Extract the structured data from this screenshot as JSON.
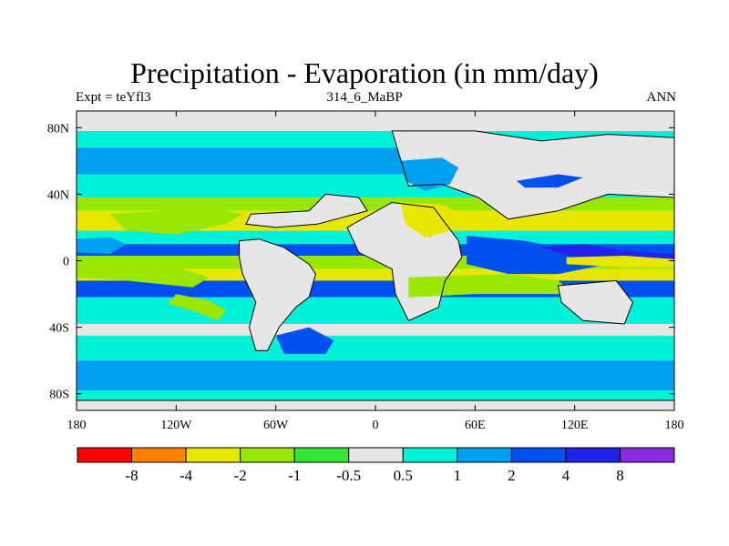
{
  "chart_data": {
    "type": "heatmap",
    "title": "Precipitation - Evaporation (in mm/day)",
    "subtitle_left": "Expt = teYfl3",
    "subtitle_center": "314_6_MaBP",
    "subtitle_right": "ANN",
    "xlim": [
      -180,
      180
    ],
    "ylim": [
      -90,
      90
    ],
    "x_ticks": [
      {
        "value": -180,
        "label": "180"
      },
      {
        "value": -120,
        "label": "120W"
      },
      {
        "value": -60,
        "label": "60W"
      },
      {
        "value": 0,
        "label": "0"
      },
      {
        "value": 60,
        "label": "60E"
      },
      {
        "value": 120,
        "label": "120E"
      },
      {
        "value": 180,
        "label": "180"
      }
    ],
    "y_ticks": [
      {
        "value": 80,
        "label": "80N"
      },
      {
        "value": 40,
        "label": "40N"
      },
      {
        "value": 0,
        "label": "0"
      },
      {
        "value": -40,
        "label": "40S"
      },
      {
        "value": -80,
        "label": "80S"
      }
    ],
    "colorbar": {
      "labels": [
        "-8",
        "-4",
        "-2",
        "-1",
        "-0.5",
        "0.5",
        "1",
        "2",
        "4",
        "8"
      ],
      "colors": [
        "#ff0000",
        "#ff8000",
        "#e6e600",
        "#99e600",
        "#33e633",
        "#e6e6e6",
        "#00f0d8",
        "#00a0f0",
        "#0050f0",
        "#2222e8",
        "#8a2be2"
      ]
    },
    "zonal_bands": [
      {
        "lat_from": 90,
        "lat_to": 78,
        "color": "#e6e6e6"
      },
      {
        "lat_from": 78,
        "lat_to": 68,
        "color": "#00f0d8"
      },
      {
        "lat_from": 68,
        "lat_to": 52,
        "color": "#00a0f0"
      },
      {
        "lat_from": 52,
        "lat_to": 38,
        "color": "#00f0d8"
      },
      {
        "lat_from": 38,
        "lat_to": 30,
        "color": "#99e600"
      },
      {
        "lat_from": 30,
        "lat_to": 18,
        "color": "#e6e600"
      },
      {
        "lat_from": 18,
        "lat_to": 10,
        "color": "#00f0d8"
      },
      {
        "lat_from": 10,
        "lat_to": 3,
        "color": "#0050f0"
      },
      {
        "lat_from": 3,
        "lat_to": -5,
        "color": "#99e600"
      },
      {
        "lat_from": -5,
        "lat_to": -12,
        "color": "#e6e600"
      },
      {
        "lat_from": -12,
        "lat_to": -22,
        "color": "#0050f0"
      },
      {
        "lat_from": -22,
        "lat_to": -38,
        "color": "#00f0d8"
      },
      {
        "lat_from": -38,
        "lat_to": -45,
        "color": "#e6e6e6"
      },
      {
        "lat_from": -45,
        "lat_to": -60,
        "color": "#00f0d8"
      },
      {
        "lat_from": -60,
        "lat_to": -78,
        "color": "#00a0f0"
      },
      {
        "lat_from": -78,
        "lat_to": -90,
        "color": "#00f0d8"
      }
    ],
    "regions": [
      {
        "name": "west-pacific-blue",
        "color": "#00a0f0",
        "pts": [
          [
            -180,
            13
          ],
          [
            -160,
            14
          ],
          [
            -150,
            10
          ],
          [
            -160,
            4
          ],
          [
            -180,
            5
          ]
        ]
      },
      {
        "name": "west-pacific-green",
        "color": "#99e600",
        "pts": [
          [
            -180,
            -2
          ],
          [
            -150,
            0
          ],
          [
            -120,
            -4
          ],
          [
            -100,
            -10
          ],
          [
            -110,
            -16
          ],
          [
            -150,
            -12
          ],
          [
            -180,
            -10
          ]
        ]
      },
      {
        "name": "north-pacific-orange",
        "color": "#ff8000",
        "pts": [
          [
            -140,
            20
          ],
          [
            -125,
            24
          ],
          [
            -108,
            28
          ],
          [
            -102,
            25
          ],
          [
            -118,
            20
          ],
          [
            -135,
            17
          ]
        ]
      },
      {
        "name": "north-pacific-green",
        "color": "#99e600",
        "pts": [
          [
            -160,
            28
          ],
          [
            -130,
            30
          ],
          [
            -100,
            32
          ],
          [
            -80,
            28
          ],
          [
            -90,
            22
          ],
          [
            -120,
            16
          ],
          [
            -150,
            18
          ]
        ]
      },
      {
        "name": "south-pacific-green",
        "color": "#99e600",
        "pts": [
          [
            -120,
            -20
          ],
          [
            -100,
            -24
          ],
          [
            -90,
            -30
          ],
          [
            -95,
            -36
          ],
          [
            -110,
            -30
          ],
          [
            -125,
            -26
          ]
        ]
      },
      {
        "name": "south-america-gray",
        "color": "#e6e6e6",
        "pts": [
          [
            -82,
            12
          ],
          [
            -70,
            13
          ],
          [
            -55,
            8
          ],
          [
            -40,
            -2
          ],
          [
            -36,
            -8
          ],
          [
            -40,
            -22
          ],
          [
            -48,
            -28
          ],
          [
            -58,
            -40
          ],
          [
            -65,
            -54
          ],
          [
            -72,
            -54
          ],
          [
            -76,
            -40
          ],
          [
            -72,
            -25
          ],
          [
            -80,
            -8
          ],
          [
            -82,
            2
          ]
        ]
      },
      {
        "name": "north-america-gray",
        "color": "#e6e6e6",
        "pts": [
          [
            -75,
            28
          ],
          [
            -40,
            30
          ],
          [
            -30,
            40
          ],
          [
            -10,
            38
          ],
          [
            -5,
            30
          ],
          [
            -35,
            22
          ],
          [
            -60,
            20
          ],
          [
            -78,
            22
          ]
        ]
      },
      {
        "name": "africa-gray",
        "color": "#e6e6e6",
        "pts": [
          [
            -17,
            20
          ],
          [
            10,
            35
          ],
          [
            35,
            32
          ],
          [
            50,
            12
          ],
          [
            52,
            2
          ],
          [
            42,
            -12
          ],
          [
            38,
            -28
          ],
          [
            20,
            -36
          ],
          [
            12,
            -20
          ],
          [
            10,
            -5
          ],
          [
            -10,
            5
          ]
        ]
      },
      {
        "name": "sahara-orange",
        "color": "#ff8000",
        "pts": [
          [
            25,
            28
          ],
          [
            35,
            29
          ],
          [
            38,
            20
          ],
          [
            33,
            14
          ],
          [
            25,
            18
          ]
        ]
      },
      {
        "name": "mideast-yellow",
        "color": "#e6e600",
        "pts": [
          [
            15,
            35
          ],
          [
            40,
            34
          ],
          [
            48,
            30
          ],
          [
            45,
            18
          ],
          [
            30,
            14
          ],
          [
            18,
            22
          ]
        ]
      },
      {
        "name": "eurasia-gray",
        "color": "#e6e6e6",
        "pts": [
          [
            10,
            78
          ],
          [
            60,
            78
          ],
          [
            100,
            72
          ],
          [
            140,
            76
          ],
          [
            180,
            74
          ],
          [
            180,
            38
          ],
          [
            140,
            40
          ],
          [
            110,
            30
          ],
          [
            80,
            25
          ],
          [
            62,
            38
          ],
          [
            40,
            46
          ],
          [
            20,
            45
          ]
        ]
      },
      {
        "name": "eurasia-blue",
        "color": "#00a0f0",
        "pts": [
          [
            15,
            60
          ],
          [
            40,
            62
          ],
          [
            50,
            56
          ],
          [
            45,
            46
          ],
          [
            30,
            42
          ],
          [
            18,
            48
          ]
        ]
      },
      {
        "name": "siberia-blue",
        "color": "#0050f0",
        "pts": [
          [
            85,
            48
          ],
          [
            110,
            52
          ],
          [
            125,
            50
          ],
          [
            110,
            44
          ],
          [
            90,
            44
          ]
        ]
      },
      {
        "name": "indian-blue",
        "color": "#0050f0",
        "pts": [
          [
            55,
            15
          ],
          [
            90,
            12
          ],
          [
            110,
            8
          ],
          [
            125,
            5
          ],
          [
            180,
            10
          ],
          [
            180,
            -3
          ],
          [
            140,
            -2
          ],
          [
            110,
            -8
          ],
          [
            80,
            -8
          ],
          [
            55,
            -2
          ]
        ]
      },
      {
        "name": "indian-purple",
        "color": "#2222e8",
        "pts": [
          [
            100,
            8
          ],
          [
            125,
            10
          ],
          [
            150,
            6
          ],
          [
            180,
            4
          ],
          [
            180,
            -1
          ],
          [
            150,
            -2
          ],
          [
            120,
            2
          ]
        ]
      },
      {
        "name": "indian-yellow",
        "color": "#e6e600",
        "pts": [
          [
            115,
            2
          ],
          [
            150,
            3
          ],
          [
            180,
            1
          ],
          [
            180,
            -4
          ],
          [
            150,
            -4
          ],
          [
            115,
            -2
          ]
        ]
      },
      {
        "name": "indian-green",
        "color": "#99e600",
        "pts": [
          [
            20,
            -10
          ],
          [
            80,
            -8
          ],
          [
            110,
            -12
          ],
          [
            120,
            -20
          ],
          [
            60,
            -20
          ],
          [
            20,
            -22
          ]
        ]
      },
      {
        "name": "australia-gray",
        "color": "#e6e6e6",
        "pts": [
          [
            110,
            -15
          ],
          [
            145,
            -12
          ],
          [
            155,
            -25
          ],
          [
            150,
            -38
          ],
          [
            125,
            -36
          ],
          [
            112,
            -25
          ]
        ]
      },
      {
        "name": "southern-blue",
        "color": "#0050f0",
        "pts": [
          [
            -60,
            -45
          ],
          [
            -40,
            -40
          ],
          [
            -25,
            -48
          ],
          [
            -30,
            -56
          ],
          [
            -55,
            -56
          ]
        ]
      },
      {
        "name": "antarctic-gray",
        "color": "#e6e6e6",
        "pts": [
          [
            -180,
            -84
          ],
          [
            180,
            -84
          ],
          [
            180,
            -90
          ],
          [
            -180,
            -90
          ]
        ]
      }
    ]
  }
}
